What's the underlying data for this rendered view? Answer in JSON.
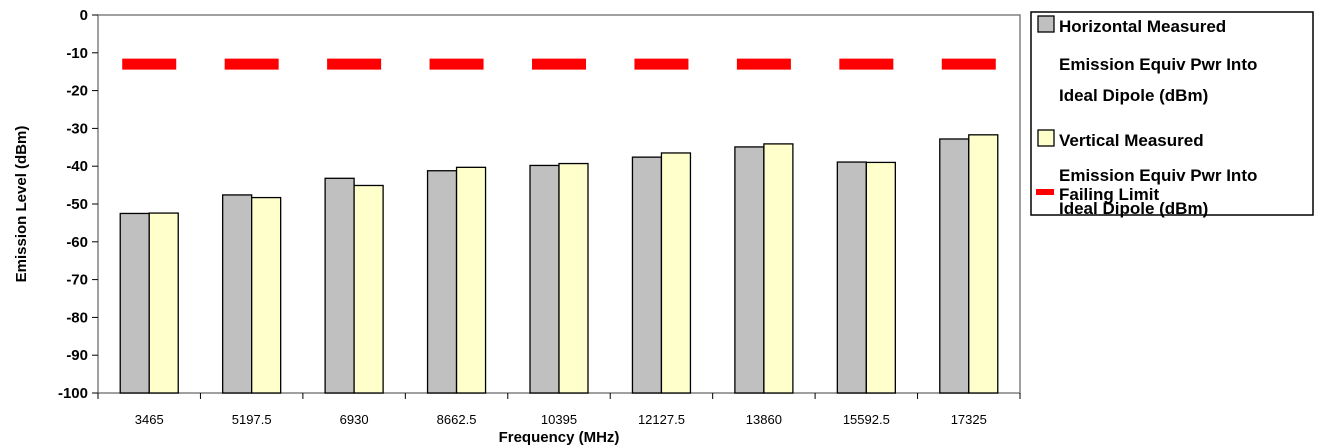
{
  "chart_data": {
    "type": "bar",
    "xlabel": "Frequency (MHz)",
    "ylabel": "Emission Level (dBm)",
    "ylim": [
      -100,
      0
    ],
    "ytick_step": 10,
    "grid": false,
    "legend_position": "right",
    "categories": [
      "3465",
      "5197.5",
      "6930",
      "8662.5",
      "10395",
      "12127.5",
      "13860",
      "15592.5",
      "17325"
    ],
    "series": [
      {
        "name": "Horizontal Measured Emission Equiv Pwr Into Ideal Dipole (dBm)",
        "legend_lines": [
          "Horizontal Measured",
          "Emission Equiv Pwr Into",
          "Ideal Dipole (dBm)"
        ],
        "type": "bar",
        "color": "#c0c0c0",
        "values": [
          -52.5,
          -47.6,
          -43.2,
          -41.2,
          -39.8,
          -37.6,
          -34.9,
          -38.9,
          -32.8
        ]
      },
      {
        "name": "Vertical Measured Emission Equiv Pwr Into Ideal Dipole (dBm)",
        "legend_lines": [
          "Vertical Measured",
          "Emission Equiv Pwr Into",
          "Ideal Dipole (dBm)"
        ],
        "type": "bar",
        "color": "#ffffcc",
        "values": [
          -52.4,
          -48.3,
          -45.1,
          -40.3,
          -39.3,
          -36.5,
          -34.1,
          -39.0,
          -31.7
        ]
      },
      {
        "name": "Failing Limit",
        "legend_lines": [
          "Failing Limit"
        ],
        "type": "dash",
        "color": "#ff0000",
        "values": [
          -13,
          -13,
          -13,
          -13,
          -13,
          -13,
          -13,
          -13,
          -13
        ]
      }
    ]
  }
}
